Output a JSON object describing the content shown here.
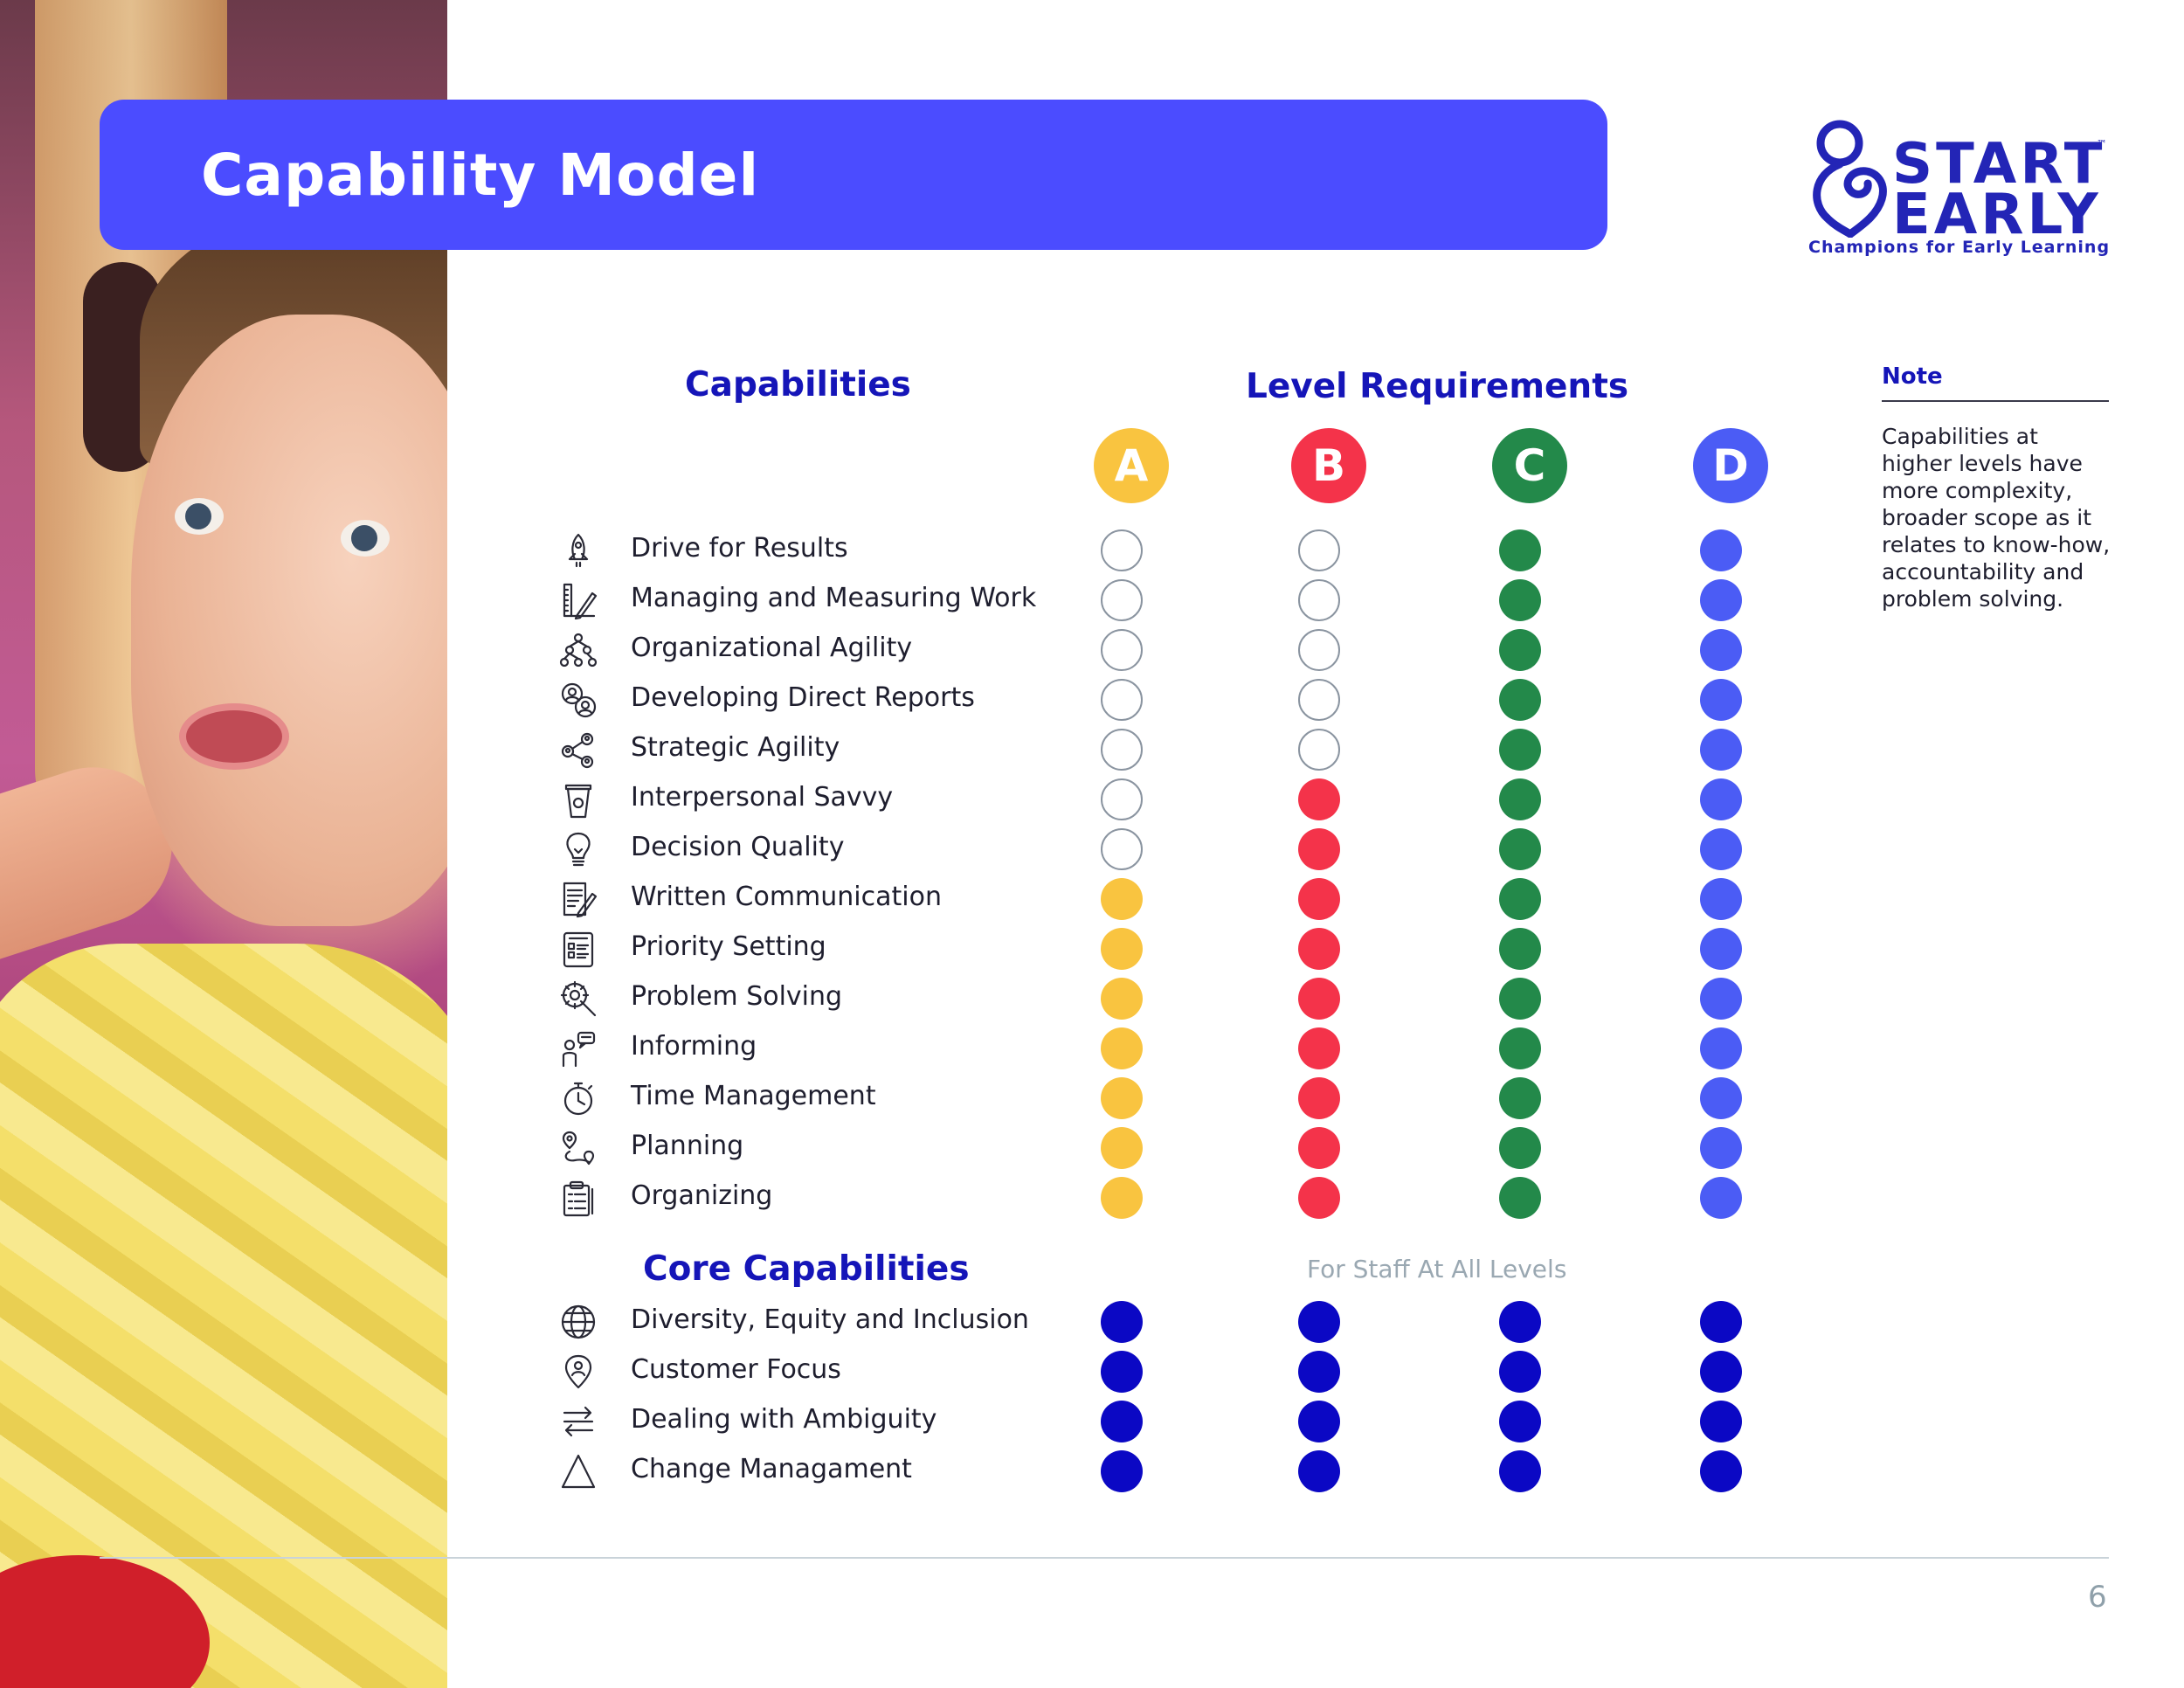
{
  "header": {
    "title": "Capability Model"
  },
  "logo": {
    "line1": "START",
    "line2": "EARLY",
    "trademark": "™",
    "tagline": "Champions for Early Learning"
  },
  "headings": {
    "capabilities": "Capabilities",
    "level_requirements": "Level Requirements",
    "core_capabilities": "Core Capabilities",
    "for_all_levels": "For Staff At All Levels"
  },
  "levels": [
    {
      "label": "A",
      "color": "#f9c440"
    },
    {
      "label": "B",
      "color": "#f4334a"
    },
    {
      "label": "C",
      "color": "#23894a"
    },
    {
      "label": "D",
      "color": "#4b5cf5"
    }
  ],
  "core_color": "#0b08c4",
  "capabilities": [
    {
      "label": "Drive for Results",
      "icon": "rocket-icon",
      "required": [
        false,
        false,
        true,
        true
      ]
    },
    {
      "label": "Managing and Measuring Work",
      "icon": "ruler-pencil-icon",
      "required": [
        false,
        false,
        true,
        true
      ]
    },
    {
      "label": "Organizational Agility",
      "icon": "org-chart-icon",
      "required": [
        false,
        false,
        true,
        true
      ]
    },
    {
      "label": "Developing Direct Reports",
      "icon": "people-growth-icon",
      "required": [
        false,
        false,
        true,
        true
      ]
    },
    {
      "label": "Strategic Agility",
      "icon": "network-people-icon",
      "required": [
        false,
        false,
        true,
        true
      ]
    },
    {
      "label": "Interpersonal Savvy",
      "icon": "cup-icon",
      "required": [
        false,
        true,
        true,
        true
      ]
    },
    {
      "label": "Decision Quality",
      "icon": "lightbulb-icon",
      "required": [
        false,
        true,
        true,
        true
      ]
    },
    {
      "label": "Written Communication",
      "icon": "document-pen-icon",
      "required": [
        true,
        true,
        true,
        true
      ]
    },
    {
      "label": "Priority Setting",
      "icon": "list-board-icon",
      "required": [
        true,
        true,
        true,
        true
      ]
    },
    {
      "label": "Problem Solving",
      "icon": "gear-search-icon",
      "required": [
        true,
        true,
        true,
        true
      ]
    },
    {
      "label": "Informing",
      "icon": "speaking-person-icon",
      "required": [
        true,
        true,
        true,
        true
      ]
    },
    {
      "label": "Time Management",
      "icon": "stopwatch-icon",
      "required": [
        true,
        true,
        true,
        true
      ]
    },
    {
      "label": "Planning",
      "icon": "route-pin-icon",
      "required": [
        true,
        true,
        true,
        true
      ]
    },
    {
      "label": "Organizing",
      "icon": "clipboard-icon",
      "required": [
        true,
        true,
        true,
        true
      ]
    }
  ],
  "core_capabilities": [
    {
      "label": "Diversity, Equity and Inclusion",
      "icon": "globe-icon"
    },
    {
      "label": "Customer Focus",
      "icon": "customer-pin-icon"
    },
    {
      "label": "Dealing with Ambiguity",
      "icon": "arrows-exchange-icon"
    },
    {
      "label": "Change Managament",
      "icon": "triangle-icon"
    }
  ],
  "note": {
    "title": "Note",
    "body": "Capabilities at higher levels have more complexity, broader scope as it relates to know-how, accountability and problem solving."
  },
  "footer": {
    "page_number": "6"
  }
}
